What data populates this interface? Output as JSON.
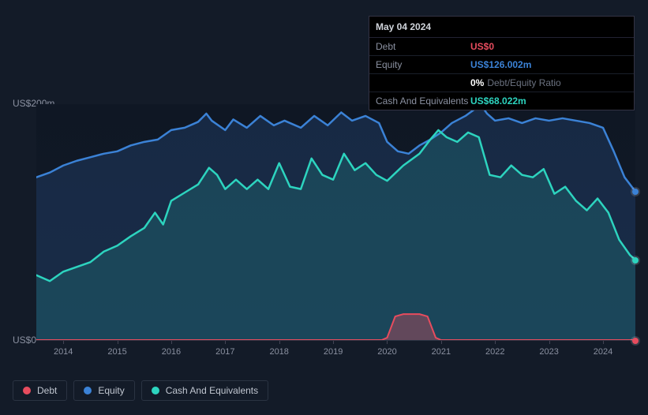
{
  "tooltip": {
    "date": "May 04 2024",
    "rows": [
      {
        "label": "Debt",
        "value": "US$0",
        "cls": "debt"
      },
      {
        "label": "Equity",
        "value": "US$126.002m",
        "cls": "equity"
      },
      {
        "label": "",
        "ratio_pct": "0%",
        "ratio_lbl": "Debt/Equity Ratio"
      },
      {
        "label": "Cash And Equivalents",
        "value": "US$68.022m",
        "cls": "cash"
      }
    ]
  },
  "chart": {
    "type": "area",
    "ylim": [
      0,
      200
    ],
    "y_ticks": [
      {
        "v": 200,
        "label": "US$200m"
      },
      {
        "v": 0,
        "label": "US$0"
      }
    ],
    "x_domain": [
      2013.5,
      2024.6
    ],
    "x_ticks": [
      2014,
      2015,
      2016,
      2017,
      2018,
      2019,
      2020,
      2021,
      2022,
      2023,
      2024
    ],
    "background_color": "#131b28",
    "grid_color": "#2a3342",
    "label_fontsize": 12,
    "series": [
      {
        "key": "equity",
        "label": "Equity",
        "color": "#3b82d6",
        "fill": "rgba(59,130,214,0.18)",
        "line_width": 2.5,
        "end_dot": true,
        "points": [
          [
            2013.5,
            138
          ],
          [
            2013.75,
            142
          ],
          [
            2014.0,
            148
          ],
          [
            2014.25,
            152
          ],
          [
            2014.5,
            155
          ],
          [
            2014.75,
            158
          ],
          [
            2015.0,
            160
          ],
          [
            2015.25,
            165
          ],
          [
            2015.5,
            168
          ],
          [
            2015.75,
            170
          ],
          [
            2016.0,
            178
          ],
          [
            2016.25,
            180
          ],
          [
            2016.5,
            185
          ],
          [
            2016.65,
            192
          ],
          [
            2016.75,
            186
          ],
          [
            2017.0,
            178
          ],
          [
            2017.15,
            187
          ],
          [
            2017.4,
            180
          ],
          [
            2017.65,
            190
          ],
          [
            2017.9,
            182
          ],
          [
            2018.1,
            186
          ],
          [
            2018.4,
            180
          ],
          [
            2018.65,
            190
          ],
          [
            2018.9,
            182
          ],
          [
            2019.15,
            193
          ],
          [
            2019.35,
            186
          ],
          [
            2019.6,
            190
          ],
          [
            2019.85,
            184
          ],
          [
            2020.0,
            168
          ],
          [
            2020.2,
            160
          ],
          [
            2020.4,
            158
          ],
          [
            2020.6,
            165
          ],
          [
            2020.8,
            170
          ],
          [
            2021.0,
            176
          ],
          [
            2021.2,
            184
          ],
          [
            2021.45,
            190
          ],
          [
            2021.6,
            195
          ],
          [
            2021.7,
            202
          ],
          [
            2021.85,
            192
          ],
          [
            2022.0,
            186
          ],
          [
            2022.25,
            188
          ],
          [
            2022.5,
            184
          ],
          [
            2022.75,
            188
          ],
          [
            2023.0,
            186
          ],
          [
            2023.25,
            188
          ],
          [
            2023.5,
            186
          ],
          [
            2023.75,
            184
          ],
          [
            2024.0,
            180
          ],
          [
            2024.2,
            160
          ],
          [
            2024.4,
            138
          ],
          [
            2024.6,
            126
          ]
        ]
      },
      {
        "key": "cash",
        "label": "Cash And Equivalents",
        "color": "#2dd4bf",
        "fill": "rgba(45,212,191,0.16)",
        "line_width": 2.5,
        "end_dot": true,
        "points": [
          [
            2013.5,
            55
          ],
          [
            2013.75,
            50
          ],
          [
            2014.0,
            58
          ],
          [
            2014.25,
            62
          ],
          [
            2014.5,
            66
          ],
          [
            2014.75,
            75
          ],
          [
            2015.0,
            80
          ],
          [
            2015.25,
            88
          ],
          [
            2015.5,
            95
          ],
          [
            2015.7,
            108
          ],
          [
            2015.85,
            98
          ],
          [
            2016.0,
            118
          ],
          [
            2016.25,
            125
          ],
          [
            2016.5,
            132
          ],
          [
            2016.7,
            146
          ],
          [
            2016.85,
            140
          ],
          [
            2017.0,
            128
          ],
          [
            2017.2,
            136
          ],
          [
            2017.4,
            128
          ],
          [
            2017.6,
            136
          ],
          [
            2017.8,
            128
          ],
          [
            2018.0,
            150
          ],
          [
            2018.2,
            130
          ],
          [
            2018.4,
            128
          ],
          [
            2018.6,
            154
          ],
          [
            2018.8,
            140
          ],
          [
            2019.0,
            136
          ],
          [
            2019.2,
            158
          ],
          [
            2019.4,
            144
          ],
          [
            2019.6,
            150
          ],
          [
            2019.8,
            140
          ],
          [
            2020.0,
            135
          ],
          [
            2020.3,
            148
          ],
          [
            2020.6,
            158
          ],
          [
            2020.8,
            170
          ],
          [
            2020.95,
            178
          ],
          [
            2021.1,
            172
          ],
          [
            2021.3,
            168
          ],
          [
            2021.5,
            176
          ],
          [
            2021.7,
            172
          ],
          [
            2021.9,
            140
          ],
          [
            2022.1,
            138
          ],
          [
            2022.3,
            148
          ],
          [
            2022.5,
            140
          ],
          [
            2022.7,
            138
          ],
          [
            2022.9,
            145
          ],
          [
            2023.1,
            124
          ],
          [
            2023.3,
            130
          ],
          [
            2023.5,
            118
          ],
          [
            2023.7,
            110
          ],
          [
            2023.9,
            120
          ],
          [
            2024.1,
            108
          ],
          [
            2024.3,
            85
          ],
          [
            2024.5,
            72
          ],
          [
            2024.6,
            68
          ]
        ]
      },
      {
        "key": "debt",
        "label": "Debt",
        "color": "#e74c5e",
        "fill": "rgba(231,76,94,0.35)",
        "line_width": 2,
        "end_dot": true,
        "points": [
          [
            2013.5,
            0
          ],
          [
            2019.7,
            0
          ],
          [
            2019.9,
            0
          ],
          [
            2020.0,
            2
          ],
          [
            2020.15,
            20
          ],
          [
            2020.3,
            22
          ],
          [
            2020.45,
            22
          ],
          [
            2020.6,
            22
          ],
          [
            2020.75,
            20
          ],
          [
            2020.9,
            2
          ],
          [
            2021.0,
            0
          ],
          [
            2024.6,
            0
          ]
        ]
      }
    ],
    "legend": [
      {
        "key": "debt",
        "label": "Debt",
        "color": "#e74c5e"
      },
      {
        "key": "equity",
        "label": "Equity",
        "color": "#3b82d6"
      },
      {
        "key": "cash",
        "label": "Cash And Equivalents",
        "color": "#2dd4bf"
      }
    ]
  }
}
